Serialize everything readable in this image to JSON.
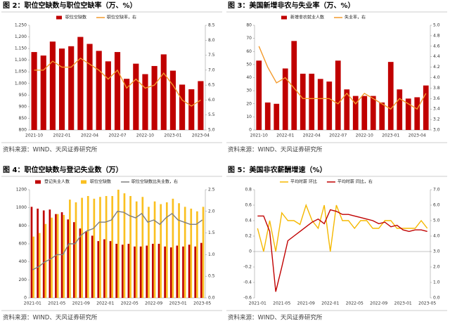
{
  "chart_data": [
    {
      "type": "combo",
      "title": "图 2：职位空缺数与职位空缺率（万、%）",
      "source": "资料来源：WIND、天风证券研究所",
      "categories": [
        "2021-10",
        null,
        null,
        "2022-01",
        null,
        null,
        "2022-04",
        null,
        null,
        "2022-07",
        null,
        null,
        "2022-10",
        null,
        null,
        "2023-01",
        null,
        null,
        "2023-04"
      ],
      "series": [
        {
          "name": "职位空缺数",
          "kind": "bar",
          "color": "#c00000",
          "values": [
            1135,
            1120,
            1180,
            1150,
            1160,
            1200,
            1170,
            1140,
            1095,
            1135,
            1020,
            1085,
            1040,
            1075,
            1125,
            1055,
            995,
            975,
            1010
          ]
        },
        {
          "name": "职位空缺率，右",
          "kind": "line",
          "axis": "y2",
          "color": "#f39a2c",
          "values": [
            7.0,
            7.0,
            7.3,
            7.1,
            7.1,
            7.4,
            7.2,
            7.0,
            6.7,
            7.0,
            6.4,
            6.7,
            6.4,
            6.5,
            6.9,
            6.5,
            6.0,
            5.8,
            6.0
          ]
        }
      ],
      "ylim": [
        800,
        1250
      ],
      "yticks": [
        800,
        850,
        900,
        950,
        {
          "value": 1000,
          "label": "1,000"
        },
        {
          "value": 1050,
          "label": "1,050"
        },
        {
          "value": 1100,
          "label": "1,100"
        },
        {
          "value": 1150,
          "label": "1,150"
        },
        {
          "value": 1200,
          "label": "1,200"
        },
        {
          "value": 1250,
          "label": "1,250"
        }
      ],
      "y2lim": [
        5.0,
        8.5
      ],
      "y2ticks": [
        {
          "value": 5.0,
          "label": "5.0"
        },
        5.5,
        {
          "value": 6.0,
          "label": "6.0"
        },
        6.5,
        {
          "value": 7.0,
          "label": "7.0"
        },
        7.5,
        {
          "value": 8.0,
          "label": "8.0"
        },
        8.5
      ]
    },
    {
      "type": "combo",
      "title": "图 3：美国新增非农与失业率（万、%）",
      "source": "资料来源：WIND、天风证券研究所",
      "categories": [
        "2021-10",
        null,
        null,
        "2022-01",
        null,
        null,
        "2022-04",
        null,
        null,
        "2022-07",
        null,
        null,
        "2022-10",
        null,
        null,
        "2023-01",
        null,
        null,
        "2023-04",
        null
      ],
      "series": [
        {
          "name": "新增非农就业人数",
          "kind": "bar",
          "color": "#c00000",
          "values": [
            53,
            21,
            20,
            47,
            68,
            43,
            43,
            39,
            37,
            53,
            31,
            26,
            26,
            26,
            21,
            52,
            31,
            24,
            25,
            34
          ]
        },
        {
          "name": "失业率，右",
          "kind": "line",
          "axis": "y2",
          "color": "#f39a2c",
          "values": [
            4.6,
            4.2,
            3.9,
            4.0,
            3.8,
            3.6,
            3.6,
            3.6,
            3.6,
            3.5,
            3.7,
            3.5,
            3.7,
            3.6,
            3.5,
            3.4,
            3.6,
            3.5,
            3.4,
            3.7
          ]
        }
      ],
      "ylim": [
        0,
        80
      ],
      "yticks": [
        0,
        10,
        20,
        30,
        40,
        50,
        60,
        70,
        80
      ],
      "y2lim": [
        3.0,
        5.0
      ],
      "y2ticks": [
        {
          "value": 3.0,
          "label": "3.0"
        },
        3.2,
        3.4,
        3.6,
        3.8,
        {
          "value": 4.0,
          "label": "4.0"
        },
        4.2,
        4.4,
        4.6,
        4.8,
        {
          "value": 5.0,
          "label": "5.0"
        }
      ]
    },
    {
      "type": "combo",
      "title": "图 4：职位空缺数与登记失业数（万）",
      "source": "资料来源：WIND、天风证券研究所",
      "categories": [
        "2021-01",
        null,
        null,
        null,
        "2021-05",
        null,
        null,
        null,
        "2021-09",
        null,
        null,
        null,
        "2022-01",
        null,
        null,
        null,
        "2022-05",
        null,
        null,
        null,
        "2022-09",
        null,
        null,
        null,
        "2023-01",
        null,
        null,
        null,
        "2023-05"
      ],
      "series": [
        {
          "name": "登记失业人数",
          "kind": "bar",
          "color": "#c00000",
          "values": [
            1010,
            990,
            970,
            980,
            930,
            950,
            870,
            840,
            770,
            740,
            690,
            630,
            650,
            630,
            600,
            590,
            600,
            570,
            570,
            580,
            600,
            600,
            570,
            560,
            580,
            570,
            590,
            570,
            610
          ]
        },
        {
          "name": "职位空缺数",
          "kind": "bar",
          "color": "#fac020",
          "values": [
            680,
            720,
            820,
            890,
            930,
            920,
            1090,
            1060,
            1110,
            1130,
            1100,
            1120,
            1130,
            1130,
            1200,
            1160,
            1130,
            1070,
            1120,
            1010,
            1070,
            1040,
            1060,
            1100,
            1050,
            1010,
            990,
            960,
            1010
          ]
        },
        {
          "name": "职位空缺数比失业数，右",
          "kind": "line",
          "axis": "y2",
          "color": "#7f7f7f",
          "values": [
            0.65,
            0.72,
            0.83,
            0.9,
            1.0,
            1.0,
            1.25,
            1.25,
            1.45,
            1.55,
            1.6,
            1.75,
            1.75,
            1.8,
            2.0,
            1.98,
            1.9,
            1.85,
            1.95,
            1.75,
            1.8,
            1.7,
            1.85,
            1.95,
            1.8,
            1.75,
            1.7,
            1.7,
            1.8
          ]
        }
      ],
      "ylim": [
        0,
        1200
      ],
      "yticks": [
        0,
        200,
        400,
        600,
        800,
        1000,
        1200
      ],
      "y2lim": [
        0,
        2.5
      ],
      "y2ticks": [
        {
          "value": 0,
          "label": "0.0"
        },
        0.5,
        {
          "value": 1,
          "label": "1.0"
        },
        1.5,
        {
          "value": 2,
          "label": "2.0"
        },
        2.5
      ]
    },
    {
      "type": "combo",
      "title": "图 5：美国非农薪酬增速（%）",
      "source": "资料来源：WIND、天风证券研究所",
      "categories": [
        "2021-01",
        null,
        null,
        null,
        "2021-05",
        null,
        null,
        null,
        "2021-09",
        null,
        null,
        null,
        "2022-01",
        null,
        null,
        null,
        "2022-05",
        null,
        null,
        null,
        "2022-09",
        null,
        null,
        null,
        "2023-01",
        null,
        null,
        null,
        "2023-05"
      ],
      "series": [
        {
          "name": "平均时薪 环比",
          "kind": "line",
          "color": "#f5b800",
          "values": [
            0.3,
            0.0,
            0.4,
            0.0,
            0.5,
            0.4,
            0.4,
            0.35,
            0.6,
            0.4,
            0.3,
            0.6,
            0.0,
            0.6,
            0.4,
            0.4,
            0.3,
            0.4,
            0.4,
            0.3,
            0.3,
            0.4,
            0.4,
            0.3,
            0.3,
            0.3,
            0.3,
            0.4,
            0.3
          ]
        },
        {
          "name": "平均时薪 同比，右",
          "kind": "line",
          "axis": "y2",
          "color": "#c00000",
          "values": [
            5.3,
            5.3,
            4.3,
            0.4,
            2.0,
            3.7,
            4.0,
            4.3,
            4.6,
            4.9,
            5.1,
            4.8,
            5.7,
            5.6,
            5.4,
            5.4,
            5.3,
            5.2,
            5.1,
            5.0,
            4.8,
            4.9,
            4.6,
            4.7,
            4.4,
            4.3,
            4.4,
            4.4,
            4.3
          ]
        }
      ],
      "ylim": [
        -0.6,
        0.8
      ],
      "yticks": [
        -0.6,
        -0.4,
        -0.2,
        0,
        0.2,
        0.4,
        0.6,
        0.8
      ],
      "y2lim": [
        0,
        7
      ],
      "y2ticks": [
        {
          "value": 0,
          "label": "0.0"
        },
        {
          "value": 1,
          "label": "1.0"
        },
        {
          "value": 2,
          "label": "2.0"
        },
        {
          "value": 3,
          "label": "3.0"
        },
        {
          "value": 4,
          "label": "4.0"
        },
        {
          "value": 5,
          "label": "5.0"
        },
        {
          "value": 6,
          "label": "6.0"
        },
        {
          "value": 7,
          "label": "7.0"
        }
      ]
    }
  ]
}
